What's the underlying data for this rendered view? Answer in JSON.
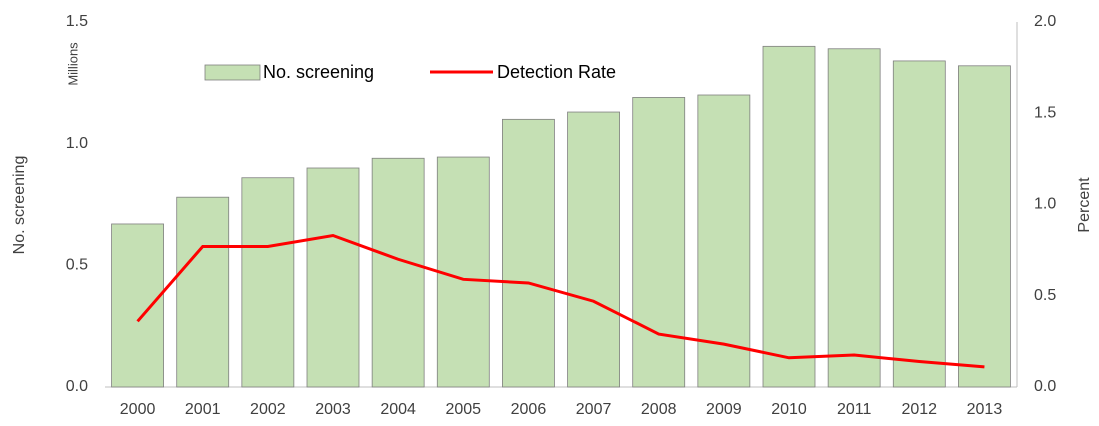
{
  "chart_data": {
    "type": "bar-line",
    "categories": [
      "2000",
      "2001",
      "2002",
      "2003",
      "2004",
      "2005",
      "2006",
      "2007",
      "2008",
      "2009",
      "2010",
      "2011",
      "2012",
      "2013"
    ],
    "series": [
      {
        "name": "No. screening",
        "type": "bar",
        "axis": "y",
        "color": "#c5e0b4",
        "values": [
          0.67,
          0.78,
          0.86,
          0.9,
          0.94,
          0.945,
          1.1,
          1.13,
          1.19,
          1.2,
          1.4,
          1.39,
          1.34,
          1.32
        ]
      },
      {
        "name": "Detection Rate",
        "type": "line",
        "axis": "y2",
        "color": "#ff0000",
        "values": [
          0.36,
          0.77,
          0.77,
          0.83,
          0.7,
          0.59,
          0.57,
          0.47,
          0.29,
          0.235,
          0.16,
          0.175,
          0.14,
          0.11
        ]
      }
    ],
    "y_label": "No. screening",
    "y2_label": "Percent",
    "y_unit_annotation": "Millions",
    "ylim": [
      0,
      1.5
    ],
    "yticks": [
      {
        "value": 0,
        "label": "0.0"
      },
      0.5,
      {
        "value": 1,
        "label": "1.0"
      },
      1.5
    ],
    "y2lim": [
      0,
      2
    ],
    "y2ticks": [
      {
        "value": 0,
        "label": "0.0"
      },
      0.5,
      {
        "value": 1,
        "label": "1.0"
      },
      1.5,
      {
        "value": 2,
        "label": "2.0"
      }
    ],
    "grid": false
  }
}
